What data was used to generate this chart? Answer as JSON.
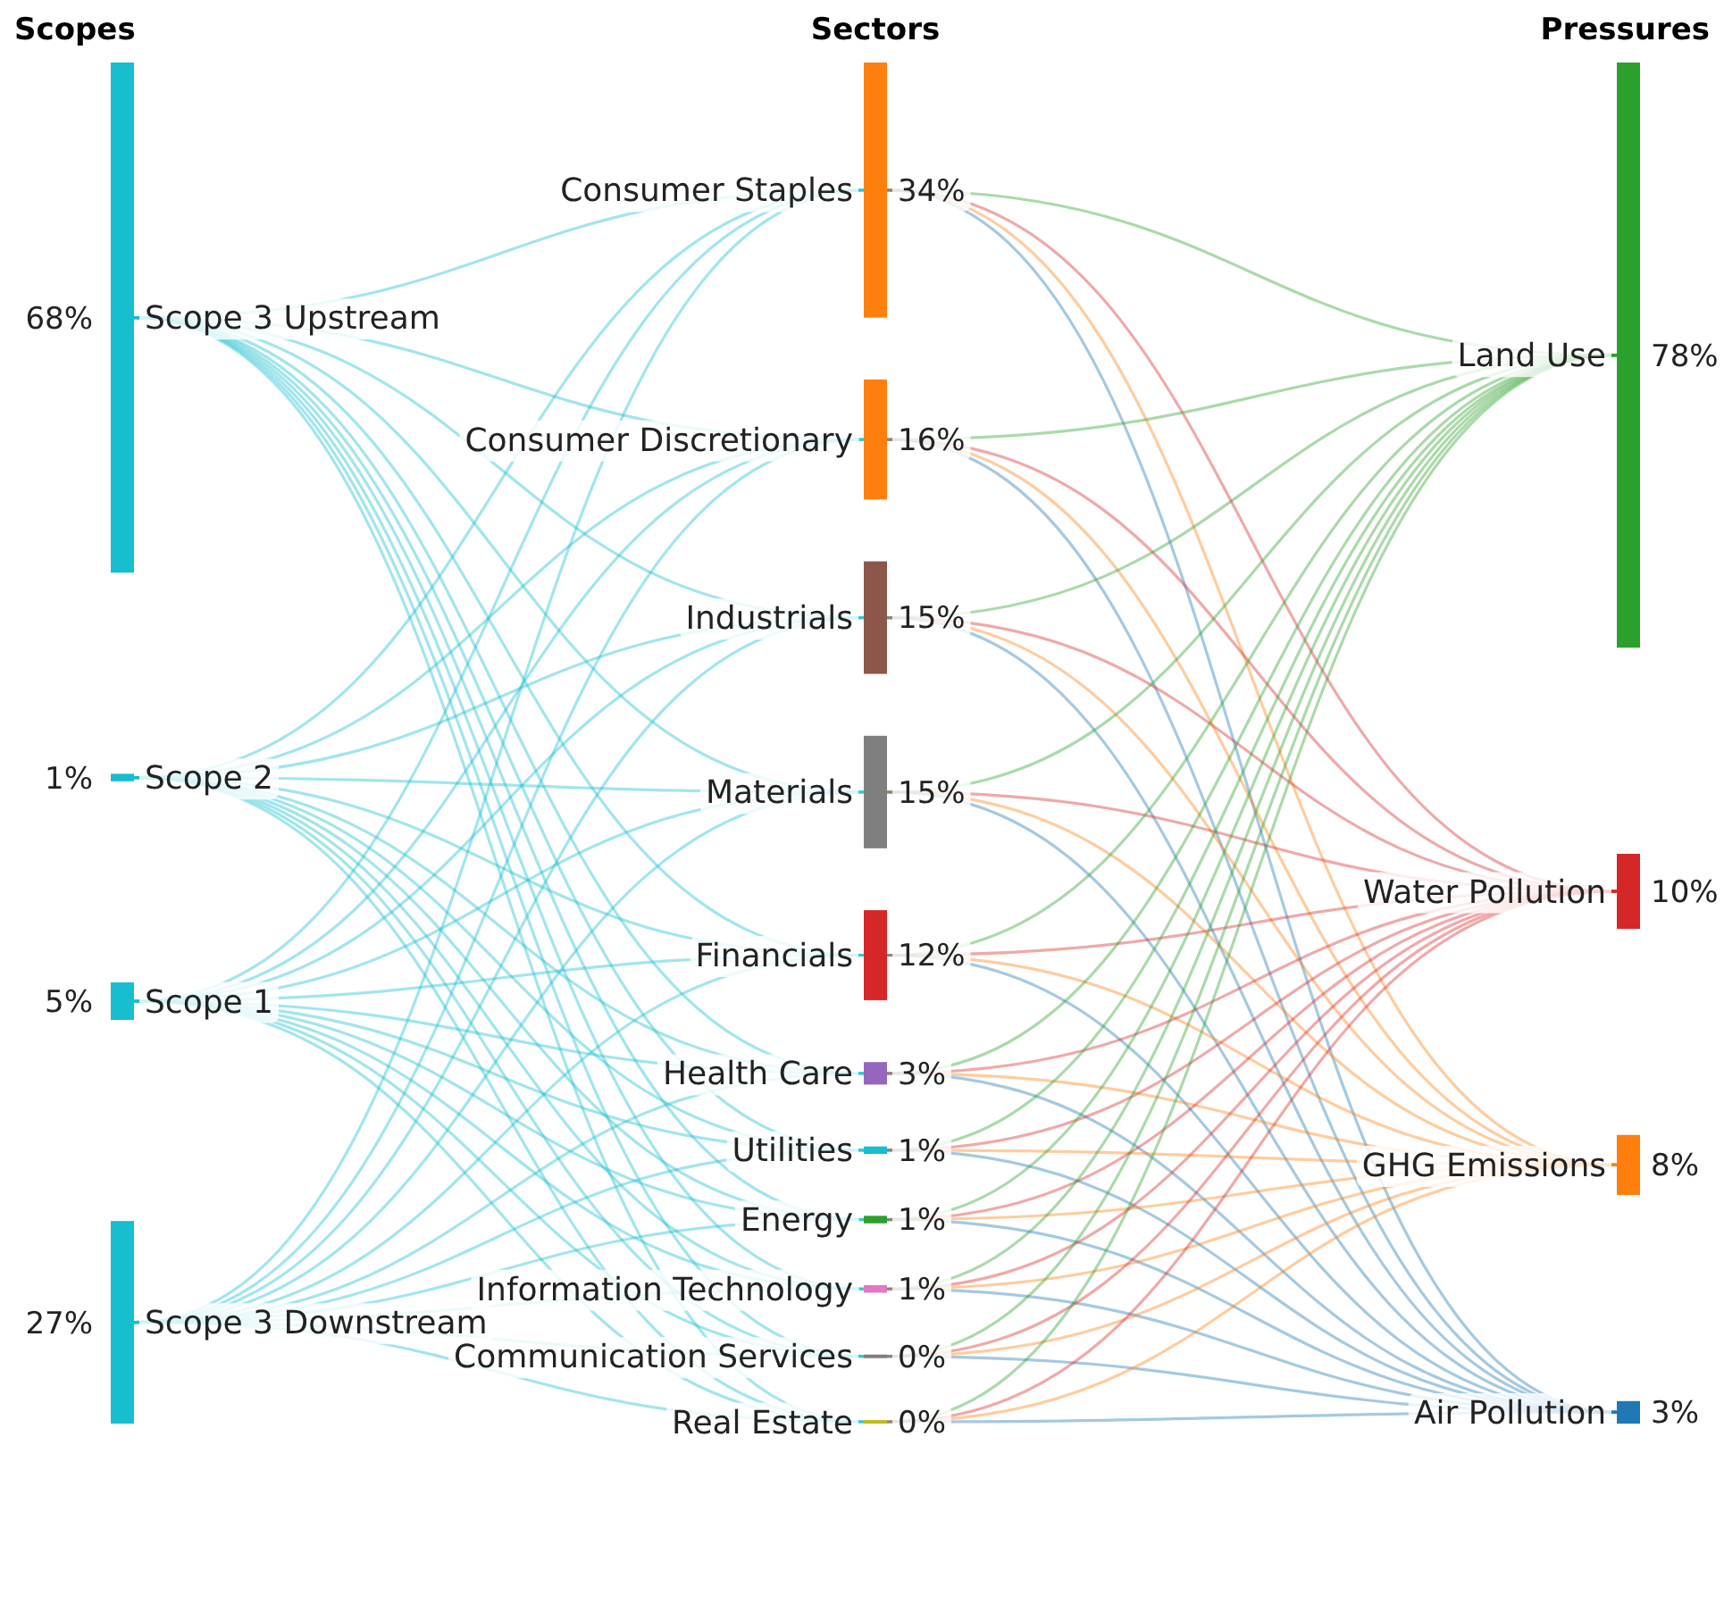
{
  "chart_data": {
    "type": "other",
    "categories": [
      "Scope 3 Upstream",
      "Scope 2",
      "Scope 1",
      "Scope 3 Downstream",
      "Consumer Staples",
      "Consumer Discretionary",
      "Industrials",
      "Materials",
      "Financials",
      "Health Care",
      "Utilities",
      "Energy",
      "Information Technology",
      "Communication Services",
      "Real Estate",
      "Land Use",
      "Water Pollution",
      "GHG Emissions",
      "Air Pollution"
    ],
    "colors": [
      "#17becf",
      "#17becf",
      "#17becf",
      "#17becf",
      "#ff7f0e",
      "#ff7f0e",
      "#8c564b",
      "#7f7f7f",
      "#d62728",
      "#9467bd",
      "#17becf",
      "#2ca02c",
      "#e377c2",
      "#7f7f7f",
      "#bcbd22",
      "#2ca02c",
      "#d62728",
      "#ff7f0e",
      "#1f77b4"
    ],
    "series": [
      {
        "name": "Scopes",
        "values": [
          68,
          1,
          5,
          27,
          null,
          null,
          null,
          null,
          null,
          null,
          null,
          null,
          null,
          null,
          null,
          null,
          null,
          null,
          null
        ],
        "value_labels": [
          "68%",
          "1%",
          "5%",
          "27%",
          null,
          null,
          null,
          null,
          null,
          null,
          null,
          null,
          null,
          null,
          null,
          null,
          null,
          null,
          null
        ]
      },
      {
        "name": "Sectors",
        "values": [
          null,
          null,
          null,
          null,
          34,
          16,
          15,
          15,
          12,
          3,
          1,
          1,
          1,
          0,
          0,
          null,
          null,
          null,
          null
        ],
        "value_labels": [
          null,
          null,
          null,
          null,
          "34%",
          "16%",
          "15%",
          "15%",
          "12%",
          "3%",
          "1%",
          "1%",
          "1%",
          "0%",
          "0%",
          null,
          null,
          null,
          null
        ]
      },
      {
        "name": "Pressures",
        "values": [
          null,
          null,
          null,
          null,
          null,
          null,
          null,
          null,
          null,
          null,
          null,
          null,
          null,
          null,
          null,
          78,
          10,
          8,
          3
        ],
        "value_labels": [
          null,
          null,
          null,
          null,
          null,
          null,
          null,
          null,
          null,
          null,
          null,
          null,
          null,
          null,
          null,
          "78%",
          "10%",
          "8%",
          "3%"
        ]
      }
    ]
  }
}
